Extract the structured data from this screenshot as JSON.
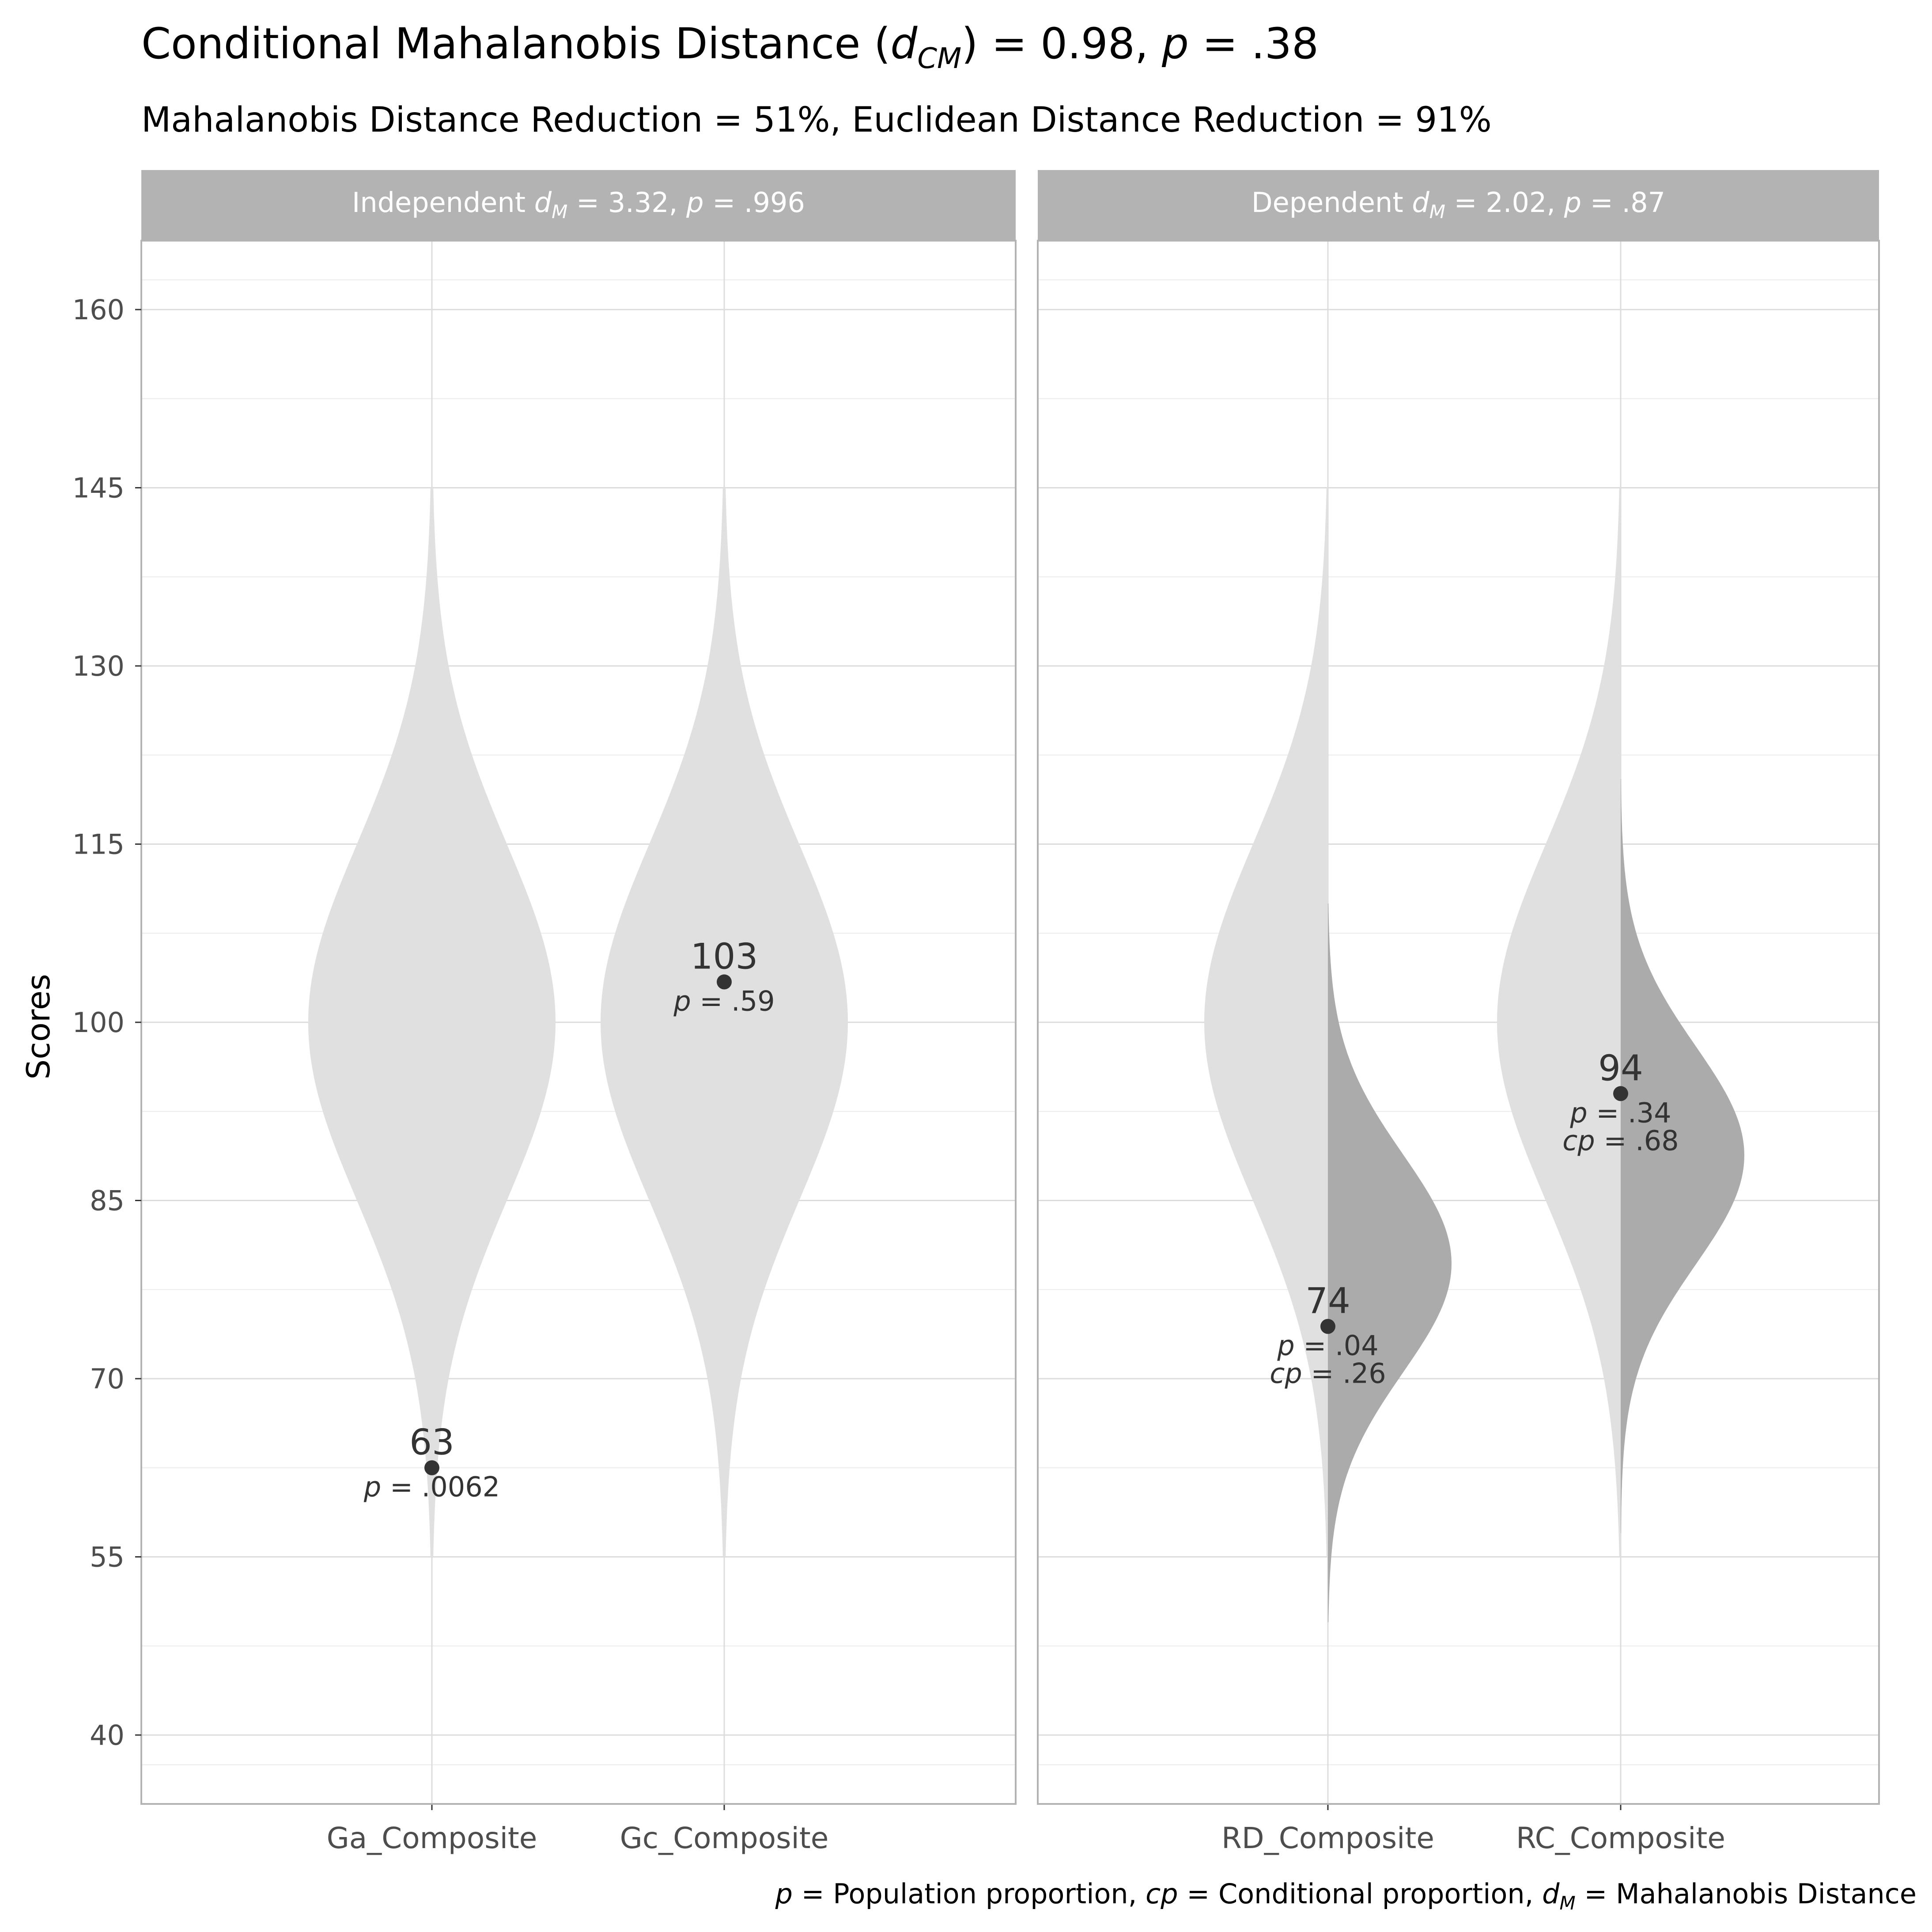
{
  "chart_data": {
    "type": "violin",
    "title": {
      "pre": "Conditional Mahalanobis Distance (",
      "d": "d",
      "sub": "CM",
      "mid": ") = 0.98, ",
      "p": "p",
      "post": " = .38"
    },
    "subtitle": "Mahalanobis Distance Reduction = 51%, Euclidean Distance Reduction = 91%",
    "ylabel": "Scores",
    "ylim": [
      34.2,
      165.8
    ],
    "y_ticks": [
      "40",
      "55",
      "70",
      "85",
      "100",
      "115",
      "130",
      "145",
      "160"
    ],
    "y_tick_values": [
      40,
      55,
      70,
      85,
      100,
      115,
      130,
      145,
      160
    ],
    "distribution": {
      "population": {
        "mean": 100,
        "sd": 15
      },
      "range": [
        55,
        145
      ]
    },
    "colors": {
      "population_violin": "#e0e0e0",
      "conditional_violin": "#ababab",
      "strip": "#b3b3b3",
      "strip_text": "#ffffff",
      "point": "#333333",
      "grid": "#dcdcdc",
      "border": "#b3b3b3"
    },
    "panels": [
      {
        "strip": {
          "pre": "Independent ",
          "d": "d",
          "sub": "M",
          "mid": " = 3.32, ",
          "p": "p",
          "post": " = .996"
        },
        "items": [
          {
            "category": "Ga_Composite",
            "score": 62.5,
            "score_label": "63",
            "p_label": " = .0062"
          },
          {
            "category": "Gc_Composite",
            "score": 103.4,
            "score_label": "103",
            "p_label": " = .59"
          }
        ]
      },
      {
        "strip": {
          "pre": "Dependent ",
          "d": "d",
          "sub": "M",
          "mid": " = 2.02, ",
          "p": "p",
          "post": " = .87"
        },
        "items": [
          {
            "category": "RD_Composite",
            "score": 74.4,
            "score_label": "74",
            "p_label": " = .04",
            "cp_label": " = .26",
            "conditional": {
              "mean": 79.7,
              "sd": 9.2,
              "range": [
                49.5,
                110
              ]
            }
          },
          {
            "category": "RC_Composite",
            "score": 94.0,
            "score_label": "94",
            "p_label": " = .34",
            "cp_label": " = .68",
            "conditional": {
              "mean": 88.8,
              "sd": 9.2,
              "range": [
                57,
                120.5
              ]
            }
          }
        ]
      }
    ],
    "caption": {
      "p": "p",
      "p_text": " = Population proportion, ",
      "cp": "cp",
      "cp_text": " = Conditional proportion, ",
      "d": "d",
      "sub": "M",
      "d_text": " = Mahalanobis Distance"
    }
  }
}
